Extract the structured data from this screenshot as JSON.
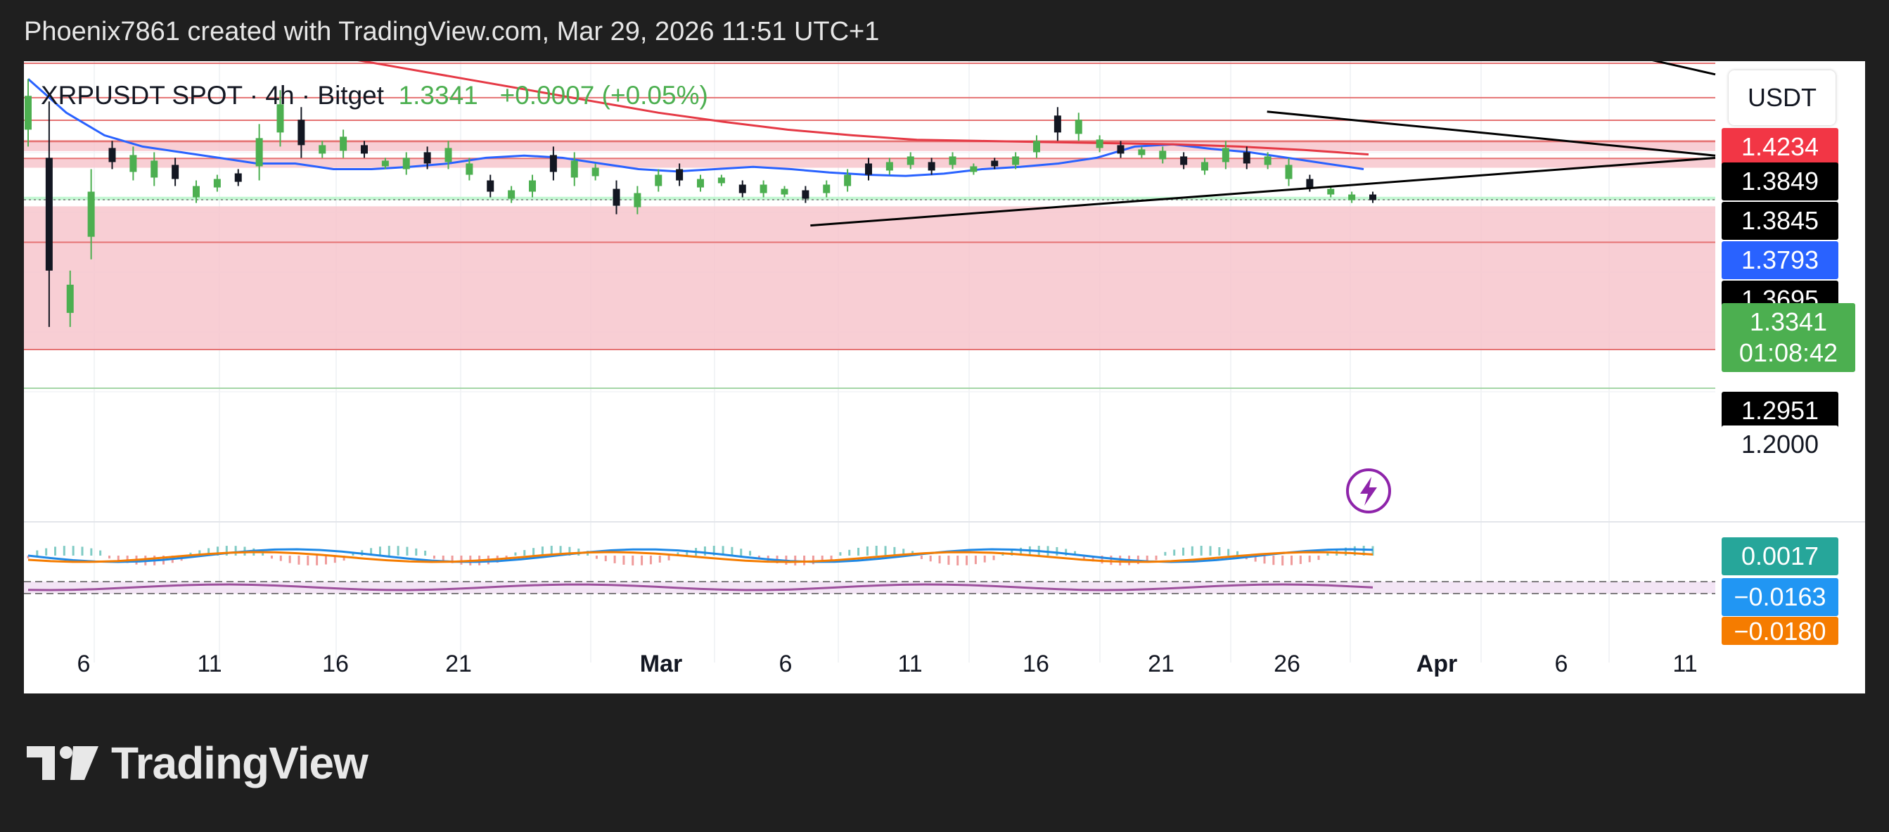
{
  "header": {
    "text": "Phoenix7861 created with TradingView.com, Mar 29, 2026 11:51 UTC+1"
  },
  "legend": {
    "title": "XRPUSDT SPOT · 4h · Bitget",
    "last": "1.3341",
    "change": "+0.0007 (+0.05%)"
  },
  "currency_button": "USDT",
  "price_labels": [
    {
      "text": "1.4234",
      "bg": "#f23645"
    },
    {
      "text": "1.3849",
      "bg": "#000000"
    },
    {
      "text": "1.3845",
      "bg": "#000000"
    },
    {
      "text": "1.3793",
      "bg": "#2962ff"
    },
    {
      "text": "1.3695",
      "bg": "#000000"
    },
    {
      "text": "1.2951",
      "bg": "#000000"
    },
    {
      "text": "1.2000",
      "bg": "#ffffff"
    }
  ],
  "current_price": {
    "price": "1.3341",
    "countdown": "01:08:42",
    "bg": "#4caf50"
  },
  "indicator_labels": [
    {
      "text": "0.0017",
      "bg": "#26a69a"
    },
    {
      "text": "−0.0163",
      "bg": "#2196f3"
    },
    {
      "text": "−0.0180",
      "bg": "#f57c00"
    }
  ],
  "x_axis_ticks": [
    "6",
    "11",
    "16",
    "21",
    "Mar",
    "6",
    "11",
    "16",
    "21",
    "26",
    "Apr",
    "6",
    "11"
  ],
  "logo_text": "TradingView",
  "colors": {
    "up": "#4caf50",
    "down": "#131722",
    "ma_fast": "#2962ff",
    "ma_slow": "#e53945",
    "zone_red": "#f7c6cc",
    "zone_green": "#b9f6ca",
    "macd": "#1e88e5",
    "signal": "#f57c00",
    "rsi": "#9c4f9c"
  },
  "chart_data": {
    "type": "candlestick",
    "symbol": "XRPUSDT",
    "market": "SPOT",
    "interval": "4h",
    "exchange": "Bitget",
    "ylim": [
      1.14,
      1.47
    ],
    "trendlines": [
      {
        "from": [
          0.465,
          1.31
        ],
        "to": [
          1.0,
          1.37
        ],
        "name": ""
      },
      {
        "from": [
          0.735,
          1.411
        ],
        "to": [
          1.0,
          1.372
        ],
        "name": ""
      },
      {
        "from": [
          0.885,
          1.483
        ],
        "to": [
          1.0,
          1.444
        ],
        "name": ""
      }
    ],
    "horizontal_levels": [
      1.4234,
      1.3849,
      1.3845,
      1.3695,
      1.2951,
      1.2
    ],
    "zones": [
      {
        "from": 1.376,
        "to": 1.385,
        "color": "red"
      },
      {
        "from": 1.3612,
        "to": 1.369,
        "color": "red"
      },
      {
        "from": 1.3325,
        "to": 1.3355,
        "color": "green"
      },
      {
        "from": 1.2,
        "to": 1.327,
        "color": "red"
      }
    ],
    "series": [
      {
        "name": "price",
        "candles_approx": [
          [
            1.44,
            1.38
          ],
          [
            1.42,
            1.22
          ],
          [
            1.27,
            1.22
          ],
          [
            1.36,
            1.28
          ],
          [
            1.385,
            1.36
          ],
          [
            1.38,
            1.35
          ],
          [
            1.375,
            1.345
          ],
          [
            1.37,
            1.345
          ],
          [
            1.35,
            1.33
          ],
          [
            1.355,
            1.34
          ],
          [
            1.36,
            1.345
          ],
          [
            1.4,
            1.35
          ],
          [
            1.43,
            1.38
          ],
          [
            1.415,
            1.37
          ],
          [
            1.385,
            1.37
          ],
          [
            1.395,
            1.37
          ],
          [
            1.385,
            1.37
          ],
          [
            1.37,
            1.36
          ],
          [
            1.375,
            1.355
          ],
          [
            1.38,
            1.36
          ],
          [
            1.385,
            1.36
          ],
          [
            1.37,
            1.35
          ],
          [
            1.355,
            1.335
          ],
          [
            1.345,
            1.33
          ],
          [
            1.355,
            1.335
          ],
          [
            1.38,
            1.35
          ],
          [
            1.375,
            1.345
          ],
          [
            1.365,
            1.35
          ],
          [
            1.35,
            1.32
          ],
          [
            1.345,
            1.32
          ],
          [
            1.36,
            1.34
          ],
          [
            1.365,
            1.345
          ],
          [
            1.355,
            1.34
          ],
          [
            1.355,
            1.345
          ],
          [
            1.35,
            1.335
          ],
          [
            1.35,
            1.335
          ],
          [
            1.345,
            1.335
          ],
          [
            1.345,
            1.33
          ],
          [
            1.35,
            1.335
          ],
          [
            1.36,
            1.34
          ],
          [
            1.37,
            1.35
          ],
          [
            1.37,
            1.355
          ],
          [
            1.375,
            1.36
          ],
          [
            1.37,
            1.355
          ],
          [
            1.375,
            1.36
          ],
          [
            1.365,
            1.355
          ],
          [
            1.37,
            1.36
          ],
          [
            1.375,
            1.36
          ],
          [
            1.39,
            1.37
          ],
          [
            1.415,
            1.385
          ],
          [
            1.41,
            1.385
          ],
          [
            1.39,
            1.375
          ],
          [
            1.385,
            1.37
          ],
          [
            1.38,
            1.37
          ],
          [
            1.38,
            1.365
          ],
          [
            1.375,
            1.36
          ],
          [
            1.37,
            1.355
          ],
          [
            1.385,
            1.36
          ],
          [
            1.38,
            1.36
          ],
          [
            1.375,
            1.36
          ],
          [
            1.37,
            1.345
          ],
          [
            1.355,
            1.34
          ],
          [
            1.345,
            1.335
          ],
          [
            1.34,
            1.33
          ],
          [
            1.34,
            1.33
          ]
        ]
      },
      {
        "name": "",
        "values_approx": [
          1.44,
          1.41,
          1.39,
          1.38,
          1.375,
          1.37,
          1.365,
          1.365,
          1.36,
          1.36,
          1.362,
          1.365,
          1.37,
          1.372,
          1.37,
          1.365,
          1.36,
          1.358,
          1.36,
          1.362,
          1.36,
          1.357,
          1.355,
          1.354,
          1.356,
          1.36,
          1.362,
          1.365,
          1.37,
          1.38,
          1.382,
          1.378,
          1.375,
          1.37,
          1.365,
          1.36
        ]
      },
      {
        "name": "",
        "values_approx": [
          1.48,
          1.47,
          1.46,
          1.45,
          1.44,
          1.43,
          1.42,
          1.41,
          1.402,
          1.395,
          1.39,
          1.386,
          1.385,
          1.384,
          1.383,
          1.382,
          1.38,
          1.377,
          1.373
        ]
      }
    ],
    "indicators": [
      {
        "name": "",
        "last": 0.0017,
        "type": "histogram"
      },
      {
        "name": "",
        "last": -0.0163,
        "type": "line"
      },
      {
        "name": "",
        "last": -0.018,
        "type": "line"
      }
    ],
    "x_axis_labels": [
      "6",
      "11",
      "16",
      "21",
      "Mar",
      "6",
      "11",
      "16",
      "21",
      "26",
      "Apr",
      "6",
      "11"
    ],
    "title": "",
    "xlabel": "",
    "ylabel": ""
  }
}
